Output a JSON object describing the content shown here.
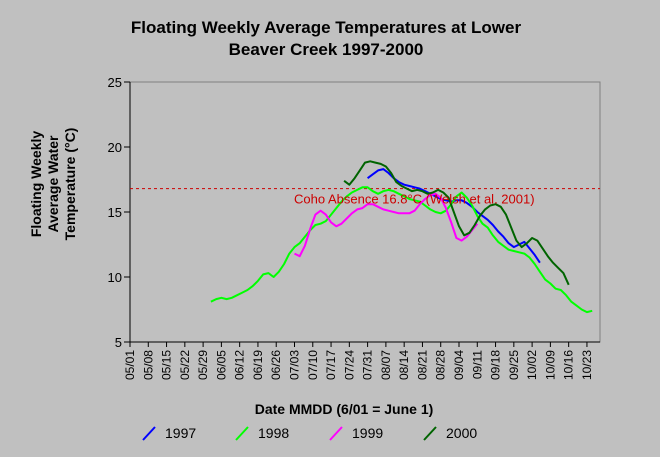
{
  "chart_data": {
    "type": "line",
    "title_line1": "Floating Weekly Average Temperatures at Lower",
    "title_line2": "Beaver Creek 1997-2000",
    "ylabel_line1": "Floating Weekly",
    "ylabel_line2": "Average Water",
    "ylabel_line3": "Temperature (°C)",
    "xlabel": "Date MMDD (6/01 = June 1)",
    "ylim": [
      5,
      25
    ],
    "yticks": [
      5,
      10,
      15,
      20,
      25
    ],
    "x_start": "05/01",
    "x_end": "10/28",
    "xticks": [
      "05/01",
      "05/08",
      "05/15",
      "05/22",
      "05/29",
      "06/05",
      "06/12",
      "06/19",
      "06/26",
      "07/03",
      "07/10",
      "07/17",
      "07/24",
      "07/31",
      "08/07",
      "08/14",
      "08/21",
      "08/28",
      "09/04",
      "09/11",
      "09/18",
      "09/25",
      "10/02",
      "10/09",
      "10/16",
      "10/23"
    ],
    "grid": false,
    "legend_position": "bottom",
    "reference_line": {
      "value": 16.8,
      "label": "Coho Absence 16.8°C (Welsh et al. 2001)",
      "color": "#cc0000"
    },
    "series": [
      {
        "name": "1997",
        "color": "#0000ff",
        "x": [
          "07/31",
          "08/02",
          "08/04",
          "08/06",
          "08/08",
          "08/10",
          "08/12",
          "08/14",
          "08/16",
          "08/18",
          "08/20",
          "08/22",
          "08/24",
          "08/26",
          "08/28",
          "08/30",
          "09/01",
          "09/03",
          "09/05",
          "09/07",
          "09/09",
          "09/11",
          "09/13",
          "09/15",
          "09/17",
          "09/19",
          "09/21",
          "09/23",
          "09/25",
          "09/27",
          "09/29",
          "10/01",
          "10/03",
          "10/05"
        ],
        "y": [
          17.6,
          17.9,
          18.2,
          18.3,
          18.0,
          17.6,
          17.3,
          17.1,
          17.0,
          16.9,
          16.8,
          16.6,
          16.4,
          16.2,
          16.0,
          15.9,
          15.8,
          15.9,
          15.9,
          15.7,
          15.4,
          15.0,
          14.7,
          14.4,
          14.0,
          13.5,
          13.1,
          12.6,
          12.3,
          12.5,
          12.7,
          12.2,
          11.7,
          11.1
        ]
      },
      {
        "name": "1998",
        "color": "#00ff00",
        "x": [
          "06/01",
          "06/03",
          "06/05",
          "06/07",
          "06/09",
          "06/11",
          "06/13",
          "06/15",
          "06/17",
          "06/19",
          "06/21",
          "06/23",
          "06/25",
          "06/27",
          "06/29",
          "07/01",
          "07/03",
          "07/05",
          "07/07",
          "07/09",
          "07/11",
          "07/13",
          "07/15",
          "07/17",
          "07/19",
          "07/21",
          "07/23",
          "07/25",
          "07/27",
          "07/29",
          "07/31",
          "08/02",
          "08/04",
          "08/06",
          "08/08",
          "08/10",
          "08/12",
          "08/14",
          "08/16",
          "08/18",
          "08/20",
          "08/22",
          "08/24",
          "08/26",
          "08/28",
          "08/30",
          "09/01",
          "09/03",
          "09/05",
          "09/07",
          "09/09",
          "09/11",
          "09/13",
          "09/15",
          "09/17",
          "09/19",
          "09/21",
          "09/23",
          "09/25",
          "09/27",
          "09/29",
          "10/01",
          "10/03",
          "10/05",
          "10/07",
          "10/09",
          "10/11",
          "10/13",
          "10/15",
          "10/17",
          "10/19",
          "10/21",
          "10/23",
          "10/25"
        ],
        "y": [
          8.1,
          8.3,
          8.4,
          8.3,
          8.4,
          8.6,
          8.8,
          9.0,
          9.3,
          9.7,
          10.2,
          10.3,
          10.0,
          10.4,
          11.0,
          11.8,
          12.3,
          12.6,
          13.1,
          13.6,
          14.0,
          14.1,
          14.3,
          14.8,
          15.3,
          15.8,
          16.2,
          16.5,
          16.7,
          16.9,
          16.9,
          16.6,
          16.4,
          16.6,
          16.7,
          16.6,
          16.4,
          16.2,
          16.0,
          15.9,
          15.8,
          15.5,
          15.2,
          15.0,
          14.9,
          15.1,
          15.6,
          16.2,
          16.5,
          16.1,
          15.5,
          14.7,
          14.1,
          13.8,
          13.2,
          12.7,
          12.4,
          12.1,
          12.0,
          11.9,
          11.8,
          11.5,
          11.0,
          10.4,
          9.8,
          9.5,
          9.1,
          9.0,
          8.6,
          8.1,
          7.8,
          7.5,
          7.3,
          7.4
        ]
      },
      {
        "name": "1999",
        "color": "#ff00ff",
        "x": [
          "07/03",
          "07/05",
          "07/07",
          "07/09",
          "07/11",
          "07/13",
          "07/15",
          "07/17",
          "07/19",
          "07/21",
          "07/23",
          "07/25",
          "07/27",
          "07/29",
          "07/31",
          "08/02",
          "08/04",
          "08/06",
          "08/08",
          "08/10",
          "08/12",
          "08/14",
          "08/16",
          "08/18",
          "08/20",
          "08/22",
          "08/24",
          "08/26",
          "08/28",
          "08/30",
          "09/01",
          "09/03",
          "09/05",
          "09/07",
          "09/09",
          "09/11"
        ],
        "y": [
          11.8,
          11.6,
          12.4,
          13.7,
          14.8,
          15.1,
          14.8,
          14.2,
          13.9,
          14.1,
          14.5,
          14.9,
          15.2,
          15.3,
          15.6,
          15.6,
          15.4,
          15.2,
          15.1,
          15.0,
          14.9,
          14.9,
          14.9,
          15.1,
          15.6,
          16.0,
          16.3,
          16.4,
          16.1,
          15.3,
          14.2,
          13.0,
          12.8,
          13.1,
          13.6,
          14.1
        ]
      },
      {
        "name": "2000",
        "color": "#006400",
        "x": [
          "07/22",
          "07/24",
          "07/26",
          "07/28",
          "07/30",
          "08/01",
          "08/03",
          "08/05",
          "08/07",
          "08/09",
          "08/11",
          "08/13",
          "08/15",
          "08/17",
          "08/19",
          "08/21",
          "08/23",
          "08/25",
          "08/27",
          "08/29",
          "08/31",
          "09/02",
          "09/04",
          "09/06",
          "09/08",
          "09/10",
          "09/12",
          "09/14",
          "09/16",
          "09/18",
          "09/20",
          "09/22",
          "09/24",
          "09/26",
          "09/28",
          "09/30",
          "10/02",
          "10/04",
          "10/06",
          "10/08",
          "10/10",
          "10/12",
          "10/14",
          "10/16"
        ],
        "y": [
          17.4,
          17.1,
          17.6,
          18.2,
          18.8,
          18.9,
          18.8,
          18.7,
          18.5,
          18.0,
          17.3,
          17.0,
          16.8,
          16.6,
          16.7,
          16.6,
          16.4,
          16.5,
          16.7,
          16.5,
          16.1,
          15.0,
          13.9,
          13.2,
          13.4,
          14.0,
          14.7,
          15.2,
          15.5,
          15.6,
          15.4,
          14.8,
          13.8,
          12.8,
          12.3,
          12.6,
          13.0,
          12.8,
          12.2,
          11.6,
          11.1,
          10.7,
          10.3,
          9.4
        ]
      }
    ]
  }
}
